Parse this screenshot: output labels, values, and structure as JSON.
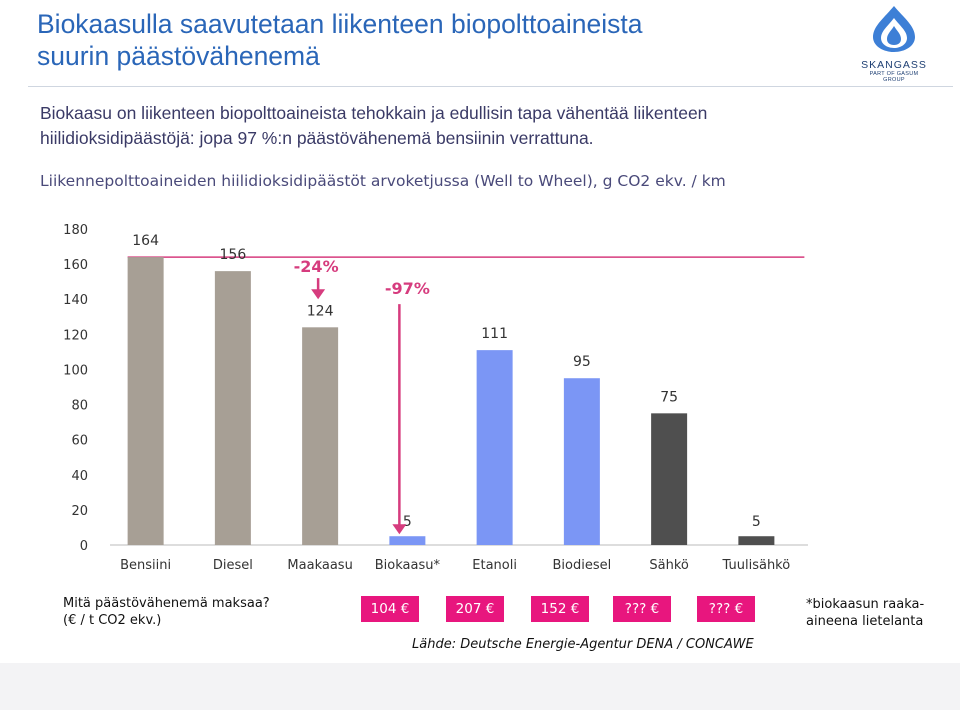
{
  "header": {
    "title_line1": "Biokaasulla saavutetaan liikenteen biopolttoaineista",
    "title_line2": "suurin päästövähenemä"
  },
  "logo": {
    "name": "SKANGASS",
    "tagline": "PART OF GASUM GROUP"
  },
  "intro": {
    "line1": "Biokaasu on liikenteen biopolttoaineista tehokkain ja edullisin tapa vähentää liikenteen",
    "line2": "hiilidioksidipäästöjä: jopa 97 %:n päästövähenemä bensiinin verrattuna."
  },
  "chart_data": {
    "type": "bar",
    "title": "Liikennepolttoaineiden hiilidioksidipäästöt arvoketjussa (Well to Wheel), g CO2 ekv. / km",
    "categories": [
      "Bensiini",
      "Diesel",
      "Maakaasu",
      "Biokaasu*",
      "Etanoli",
      "Biodiesel",
      "Sähkö",
      "Tuulisähkö"
    ],
    "values": [
      164,
      156,
      124,
      5,
      111,
      95,
      75,
      5
    ],
    "data_labels": [
      "164",
      "156",
      "124",
      "5",
      "111",
      "95",
      "75",
      "5"
    ],
    "colors": [
      "#a79f95",
      "#a79f95",
      "#a79f95",
      "#7b96f5",
      "#7b96f5",
      "#7b96f5",
      "#4f4f4f",
      "#4f4f4f"
    ],
    "yticks": [
      0,
      20,
      40,
      60,
      80,
      100,
      120,
      140,
      160,
      180
    ],
    "ylim": [
      0,
      180
    ],
    "reference_line": 164,
    "annotations": [
      {
        "text": "-24%",
        "category": "Maakaasu",
        "color": "#d63c7e"
      },
      {
        "text": "-97%",
        "category": "Biokaasu*",
        "color": "#d63c7e"
      }
    ]
  },
  "costs": {
    "question_line1": "Mitä päästövähenemä maksaa?",
    "question_line2": "(€ / t CO2 ekv.)",
    "boxes": [
      "104 €",
      "207 €",
      "152 €",
      "??? €",
      "??? €"
    ]
  },
  "footnote": {
    "line1": "*biokaasun raaka-",
    "line2": "aineena lietelanta"
  },
  "source": "Lähde: Deutsche Energie-Agentur DENA / CONCAWE"
}
